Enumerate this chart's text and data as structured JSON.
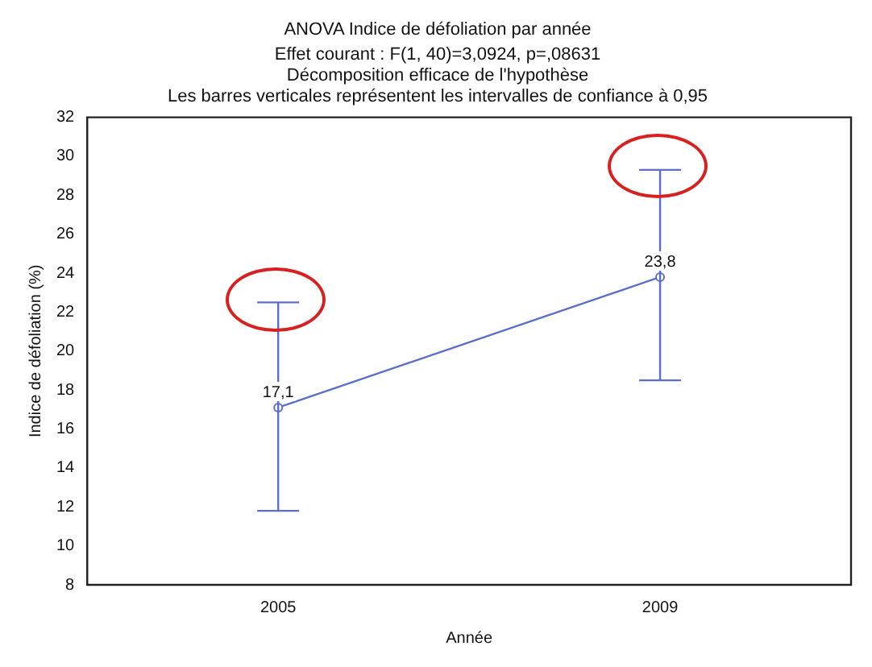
{
  "chart_data": {
    "type": "line",
    "title": "ANOVA Indice de défoliation par année",
    "subtitle": "Effet courant : F(1, 40)=3,0924, p=,08631\nDécomposition efficace de l'hypothèse\nLes barres verticales représentent les intervalles de confiance à 0,95",
    "xlabel": "Année",
    "ylabel": "Indice de défoliation (%)",
    "categories": [
      "2005",
      "2009"
    ],
    "series": [
      {
        "color": "#5b6fc9",
        "values": [
          17.1,
          23.8
        ],
        "errors": [
          [
            11.8,
            22.5
          ],
          [
            18.5,
            29.3
          ]
        ],
        "value_labels": [
          "17,1",
          "23,8"
        ]
      }
    ],
    "ylim": [
      8,
      32
    ],
    "yticks": [
      8,
      10,
      12,
      14,
      16,
      18,
      20,
      22,
      24,
      26,
      28,
      30,
      32
    ],
    "grid": false,
    "legend": false,
    "marker": "circle",
    "line_style": "solid"
  }
}
